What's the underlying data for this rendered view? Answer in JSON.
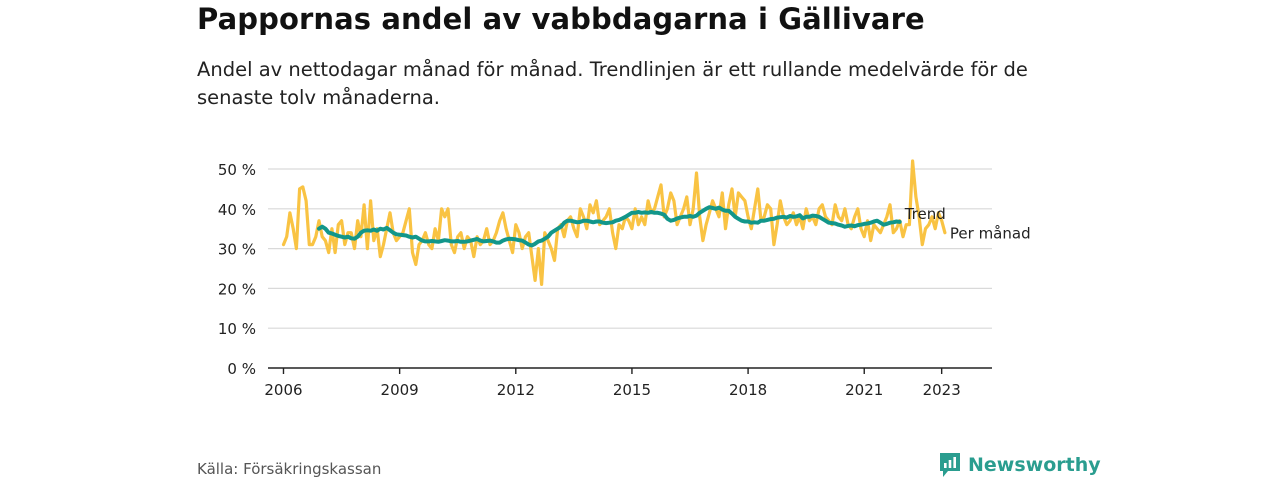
{
  "title": "Pappornas andel av vabbdagarna i Gällivare",
  "subtitle": "Andel av nettodagar månad för månad. Trendlinjen är ett rullande medelvärde för de senaste tolv månaderna.",
  "source": "Källa: Försäkringskassan",
  "brand": "Newsworthy",
  "colors": {
    "monthly": "#f9c343",
    "trend": "#12968a",
    "brand": "#2a9d8f",
    "grid": "#d9d9d9",
    "axis": "#222222"
  },
  "chart_data": {
    "type": "line",
    "title": "Pappornas andel av vabbdagarna i Gällivare",
    "ylim": [
      0,
      50
    ],
    "y_ticks": [
      0,
      10,
      20,
      30,
      40,
      50
    ],
    "y_tick_labels": [
      "0 %",
      "10 %",
      "20 %",
      "30 %",
      "40 %",
      "50 %"
    ],
    "x_ticks": [
      2006,
      2009,
      2012,
      2015,
      2018,
      2021,
      2023
    ],
    "xlim": [
      2005.6,
      2024.3
    ],
    "grid": true,
    "legend": "inline labels at line ends",
    "series": [
      {
        "name": "Per månad",
        "x_start": "2006-01",
        "frequency": "monthly",
        "values": [
          31,
          33,
          39,
          35,
          30,
          45,
          45.5,
          42,
          31,
          31,
          33,
          37,
          33,
          32,
          29,
          35,
          29,
          36,
          37,
          31,
          34,
          34,
          30,
          37,
          33,
          41,
          30,
          42,
          32,
          35,
          28,
          31,
          35,
          39,
          34,
          32,
          33,
          34,
          37,
          40,
          29,
          26,
          31,
          32,
          34,
          31,
          30,
          35,
          32,
          40,
          38,
          40,
          31,
          29,
          33,
          34,
          30,
          33,
          32,
          28,
          33,
          31,
          32,
          35,
          31,
          32,
          34,
          37,
          39,
          35,
          32,
          29,
          36,
          34,
          30,
          33,
          34,
          28,
          22,
          30,
          21,
          34,
          32,
          30,
          27,
          35,
          36,
          33,
          37,
          38,
          35,
          33,
          40,
          38,
          35,
          41,
          39,
          42,
          36,
          37,
          38,
          40,
          34,
          30,
          36,
          35,
          38,
          37,
          35,
          40,
          36,
          38,
          36,
          42,
          39,
          40,
          43,
          46,
          38,
          40,
          44,
          42,
          36,
          38,
          40,
          43,
          36,
          40,
          49,
          38,
          32,
          36,
          39,
          42,
          40,
          38,
          44,
          35,
          41,
          45,
          38,
          44,
          43,
          42,
          38,
          35,
          40,
          45,
          37,
          38,
          41,
          40,
          31,
          36,
          42,
          38,
          36,
          37,
          39,
          36,
          38,
          35,
          40,
          37,
          38,
          36,
          40,
          41,
          38,
          37,
          36,
          41,
          38,
          37,
          40,
          36,
          35,
          38,
          40,
          35,
          33,
          37,
          32,
          36,
          35,
          34,
          36,
          38,
          41,
          34,
          35,
          37,
          33,
          36,
          36,
          52,
          43,
          38,
          31,
          35,
          36,
          38,
          35,
          39,
          37,
          34
        ],
        "color": "#f9c343"
      },
      {
        "name": "Trend",
        "x_start": "2006-12",
        "frequency": "monthly",
        "values": [
          35,
          35.5,
          35,
          34,
          33.8,
          33.5,
          33.2,
          33,
          32.8,
          33,
          32.6,
          32.5,
          33,
          34,
          34.5,
          34.6,
          34.5,
          34.8,
          34.5,
          35,
          34.8,
          35.2,
          34.6,
          34,
          33.6,
          33.5,
          33.4,
          33.3,
          33,
          32.8,
          33,
          32.5,
          32,
          31.8,
          31.8,
          31.9,
          31.8,
          31.7,
          31.9,
          32.1,
          32,
          31.8,
          31.8,
          31.9,
          31.7,
          31.7,
          31.8,
          32,
          32.2,
          32.4,
          32,
          31.8,
          31.9,
          32,
          31.8,
          31.5,
          31.5,
          32,
          32.3,
          32.5,
          32.4,
          32.3,
          32.1,
          32,
          31.5,
          31,
          30.8,
          31.2,
          31.8,
          32,
          32.5,
          33,
          34,
          34.5,
          35,
          35.5,
          36.5,
          37,
          37,
          36.8,
          36.6,
          36.7,
          37,
          37,
          36.8,
          36.6,
          36.8,
          36.8,
          36.5,
          36.4,
          36.5,
          36.6,
          37,
          37.2,
          37.6,
          38,
          38.5,
          39,
          39,
          39.2,
          39,
          39.1,
          39,
          39.2,
          39,
          39,
          38.8,
          38.5,
          37.5,
          37,
          37.2,
          37.6,
          37.8,
          38,
          38,
          38.2,
          38,
          38.3,
          39,
          39.5,
          40,
          40.4,
          40.2,
          40,
          40.3,
          39.8,
          39.5,
          39.5,
          38.8,
          38,
          37.5,
          37,
          36.8,
          36.8,
          36.5,
          36.6,
          36.5,
          37,
          37,
          37.2,
          37.4,
          37.5,
          37.8,
          37.9,
          38,
          37.8,
          38.2,
          38,
          38.1,
          38.4,
          37.6,
          38,
          38,
          38.3,
          38.2,
          38,
          37.5,
          37,
          36.5,
          36.4,
          36.3,
          36,
          35.8,
          35.5,
          35.7,
          35.8,
          35.6,
          35.9,
          36,
          36.2,
          36.3,
          36.5,
          36.8,
          37,
          36.5,
          36,
          36.2,
          36.5,
          36.6,
          36.8,
          36.7
        ],
        "color": "#12968a"
      }
    ]
  }
}
